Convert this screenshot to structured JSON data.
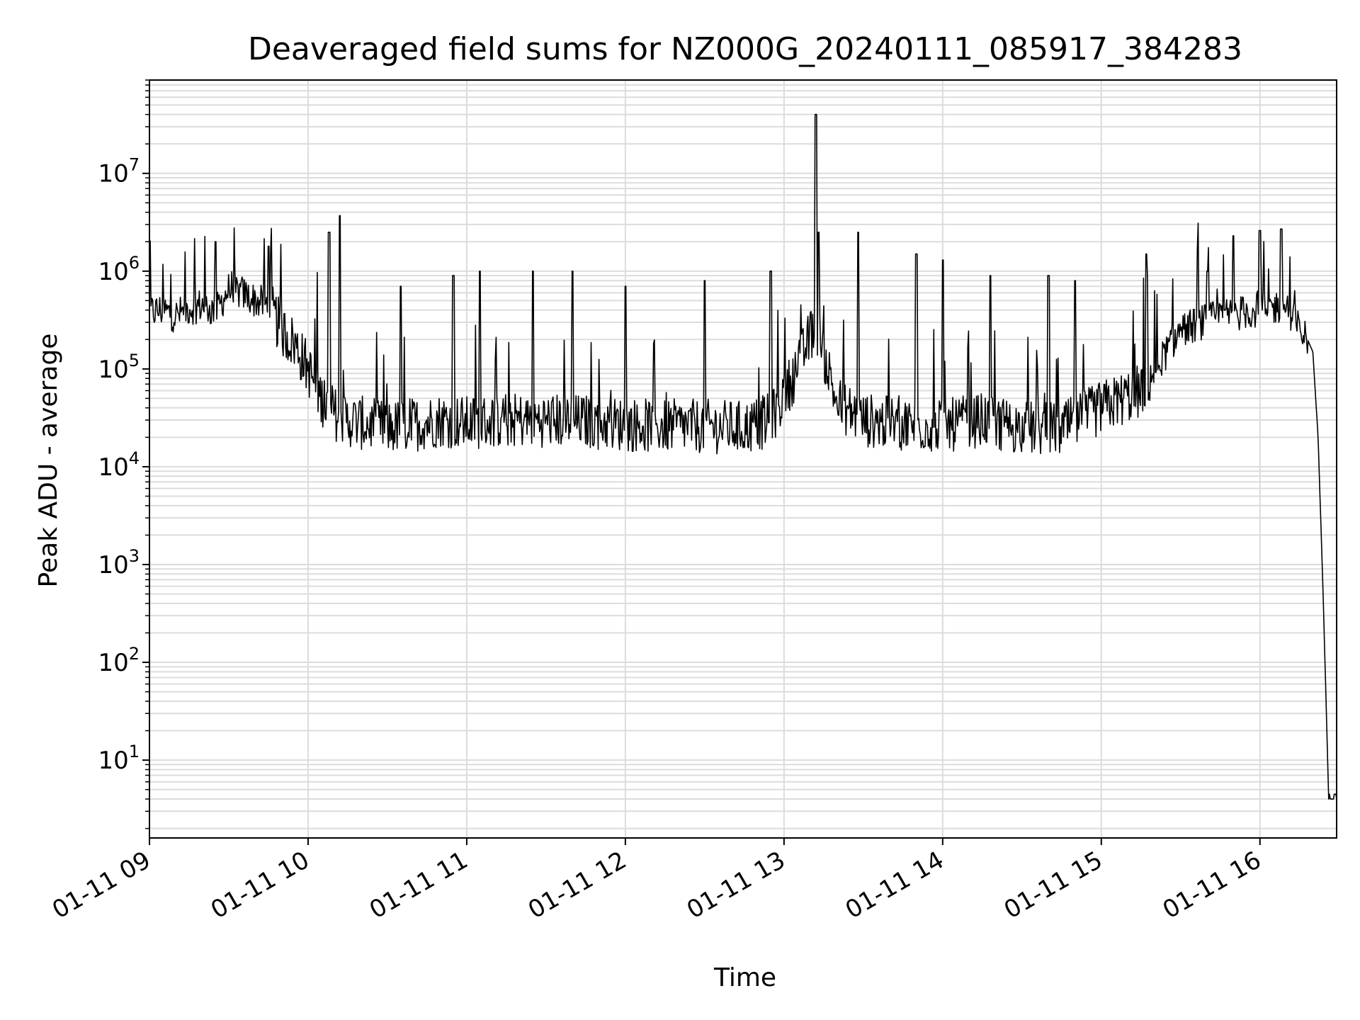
{
  "chart_data": {
    "type": "line",
    "title": "Deaveraged field sums for NZ000G_20240111_085917_384283",
    "xlabel": "Time",
    "ylabel": "Peak ADU - average",
    "yscale": "log",
    "ylim": [
      1.6,
      90000000
    ],
    "xlim": [
      "2024-01-11 09:00",
      "2024-01-11 16:29"
    ],
    "grid": true,
    "line_color": "#000000",
    "grid_color": "#dcdcdc",
    "x_ticks": [
      {
        "label": "01-11 09",
        "time": "2024-01-11 09:00"
      },
      {
        "label": "01-11 10",
        "time": "2024-01-11 10:00"
      },
      {
        "label": "01-11 11",
        "time": "2024-01-11 11:00"
      },
      {
        "label": "01-11 12",
        "time": "2024-01-11 12:00"
      },
      {
        "label": "01-11 13",
        "time": "2024-01-11 13:00"
      },
      {
        "label": "01-11 14",
        "time": "2024-01-11 14:00"
      },
      {
        "label": "01-11 15",
        "time": "2024-01-11 15:00"
      },
      {
        "label": "01-11 16",
        "time": "2024-01-11 16:00"
      }
    ],
    "y_ticks": [
      {
        "base": "10",
        "exp": "1",
        "value": 10
      },
      {
        "base": "10",
        "exp": "2",
        "value": 100
      },
      {
        "base": "10",
        "exp": "3",
        "value": 1000
      },
      {
        "base": "10",
        "exp": "4",
        "value": 10000
      },
      {
        "base": "10",
        "exp": "5",
        "value": 100000
      },
      {
        "base": "10",
        "exp": "6",
        "value": 1000000
      },
      {
        "base": "10",
        "exp": "7",
        "value": 10000000
      }
    ],
    "series": [
      {
        "x": [
          "2024-01-11 09:00",
          "2024-01-11 09:05",
          "2024-01-11 09:10",
          "2024-01-11 09:15",
          "2024-01-11 09:20",
          "2024-01-11 09:25",
          "2024-01-11 09:30",
          "2024-01-11 09:35",
          "2024-01-11 09:40",
          "2024-01-11 09:45",
          "2024-01-11 09:50",
          "2024-01-11 09:55",
          "2024-01-11 10:00",
          "2024-01-11 10:05",
          "2024-01-11 10:10",
          "2024-01-11 10:15",
          "2024-01-11 10:20",
          "2024-01-11 10:30",
          "2024-01-11 10:40",
          "2024-01-11 10:50",
          "2024-01-11 11:00",
          "2024-01-11 11:15",
          "2024-01-11 11:30",
          "2024-01-11 11:45",
          "2024-01-11 12:00",
          "2024-01-11 12:15",
          "2024-01-11 12:30",
          "2024-01-11 12:45",
          "2024-01-11 12:55",
          "2024-01-11 13:05",
          "2024-01-11 13:12",
          "2024-01-11 13:20",
          "2024-01-11 13:30",
          "2024-01-11 13:45",
          "2024-01-11 14:00",
          "2024-01-11 14:15",
          "2024-01-11 14:30",
          "2024-01-11 14:45",
          "2024-01-11 15:00",
          "2024-01-11 15:15",
          "2024-01-11 15:30",
          "2024-01-11 15:45",
          "2024-01-11 16:00",
          "2024-01-11 16:10",
          "2024-01-11 16:15",
          "2024-01-11 16:18",
          "2024-01-11 16:20",
          "2024-01-11 16:22",
          "2024-01-11 16:24",
          "2024-01-11 16:26",
          "2024-01-11 16:29"
        ],
        "y": [
          380000,
          400000,
          350000,
          420000,
          450000,
          380000,
          650000,
          600000,
          500000,
          450000,
          250000,
          180000,
          100000,
          50000,
          35000,
          30000,
          28000,
          25000,
          27000,
          30000,
          28000,
          30000,
          30000,
          29000,
          27000,
          26000,
          26000,
          25000,
          30000,
          100000,
          300000,
          45000,
          30000,
          27000,
          26000,
          30000,
          25000,
          24000,
          40000,
          60000,
          250000,
          350000,
          400000,
          450000,
          250000,
          200000,
          150000,
          20000,
          400,
          4,
          4
        ]
      },
      {
        "x": [
          "2024-01-11 09:25",
          "2024-01-11 09:45",
          "2024-01-11 10:08",
          "2024-01-11 10:12",
          "2024-01-11 10:35",
          "2024-01-11 10:55",
          "2024-01-11 11:05",
          "2024-01-11 11:25",
          "2024-01-11 11:40",
          "2024-01-11 12:00",
          "2024-01-11 12:30",
          "2024-01-11 12:55",
          "2024-01-11 13:12",
          "2024-01-11 13:13",
          "2024-01-11 13:28",
          "2024-01-11 13:50",
          "2024-01-11 14:00",
          "2024-01-11 14:18",
          "2024-01-11 14:40",
          "2024-01-11 14:50",
          "2024-01-11 15:17",
          "2024-01-11 15:40",
          "2024-01-11 15:50",
          "2024-01-11 16:00",
          "2024-01-11 16:08"
        ],
        "y": [
          2000000,
          1800000,
          2500000,
          3700000,
          700000,
          900000,
          1000000,
          1000000,
          1000000,
          700000,
          800000,
          1000000,
          40000000,
          2500000,
          2500000,
          1500000,
          1300000,
          900000,
          900000,
          800000,
          1500000,
          1000000,
          2300000,
          2600000,
          2700000
        ]
      }
    ]
  }
}
